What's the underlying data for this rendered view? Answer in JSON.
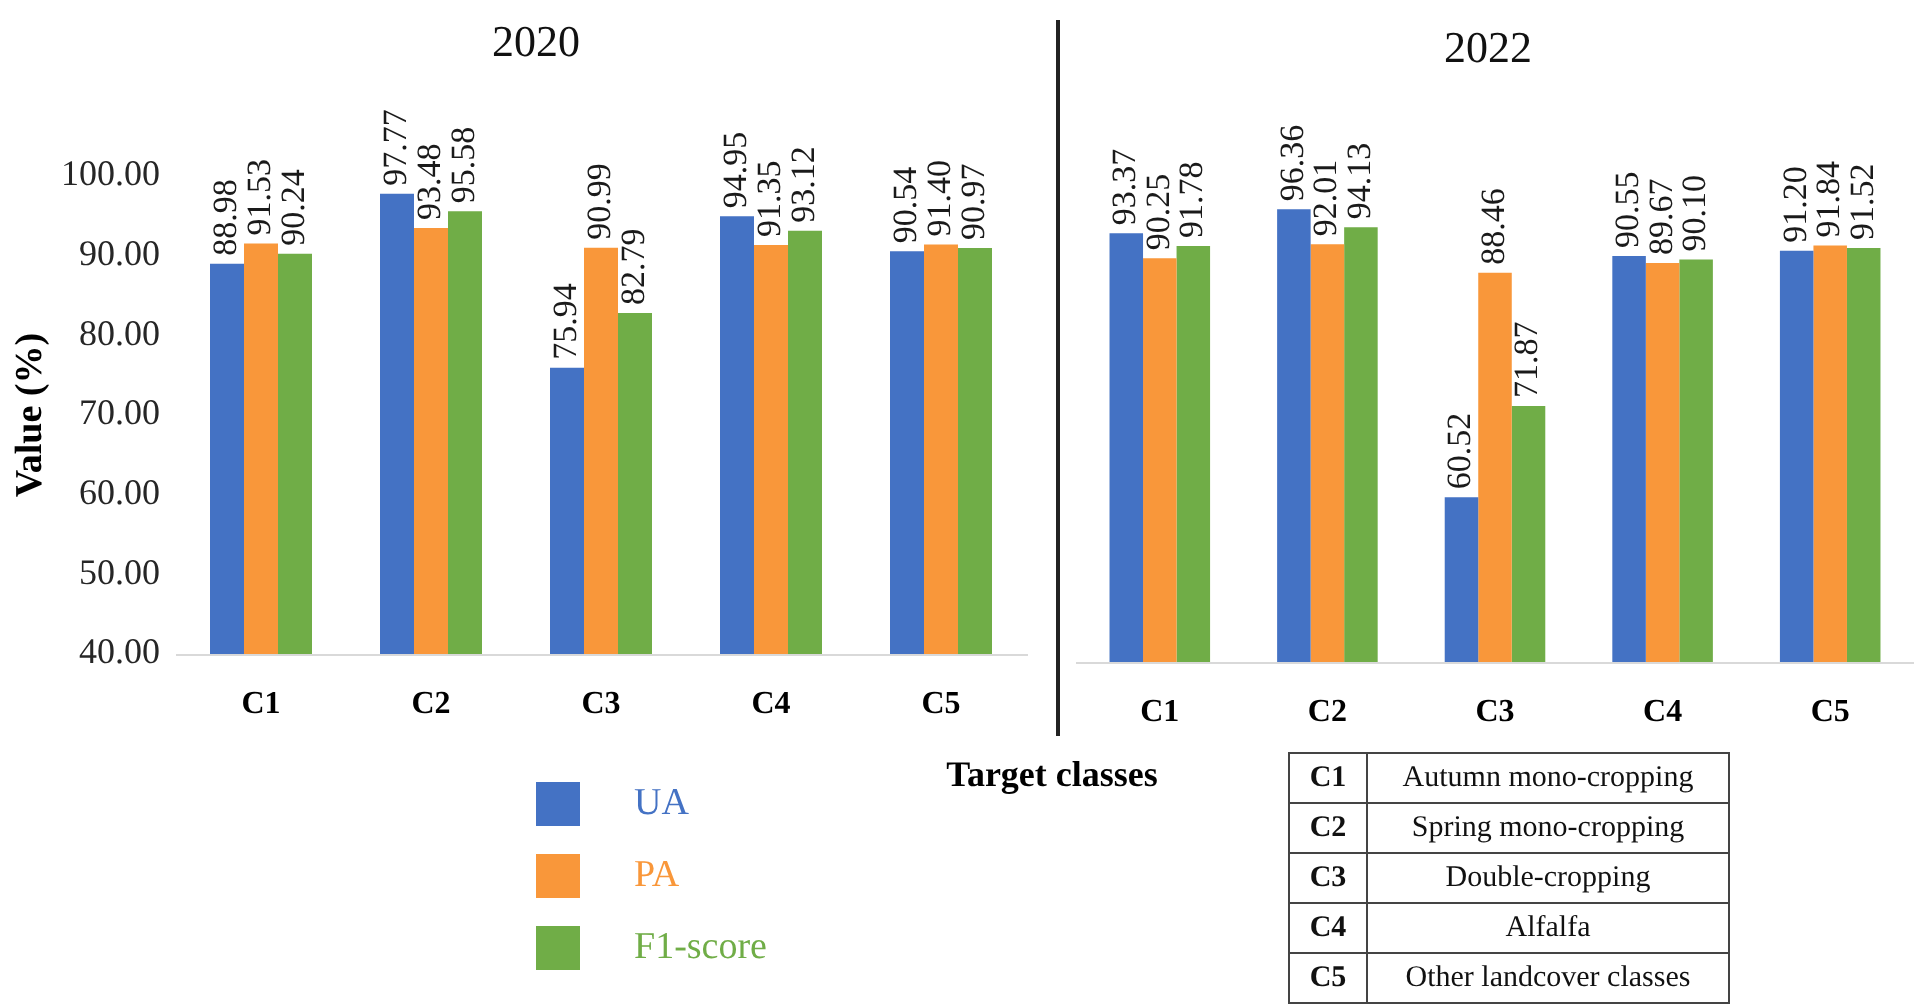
{
  "chart_data": [
    {
      "type": "bar",
      "title": "2020",
      "xlabel": "Target classes",
      "ylabel": "Value (%)",
      "categories": [
        "C1",
        "C2",
        "C3",
        "C4",
        "C5"
      ],
      "series": [
        {
          "name": "UA",
          "color": "#4472c4",
          "values": [
            88.98,
            97.77,
            75.94,
            94.95,
            90.54
          ],
          "value_labels": [
            "88.98",
            "97.77",
            "75.94",
            "94.95",
            "90.54"
          ]
        },
        {
          "name": "PA",
          "color": "#f9973a",
          "values": [
            91.53,
            93.48,
            90.99,
            91.35,
            91.4
          ],
          "value_labels": [
            "91.53",
            "93.48",
            "90.99",
            "91.35",
            "91.40"
          ]
        },
        {
          "name": "F1-score",
          "color": "#70ad47",
          "values": [
            90.24,
            95.58,
            82.79,
            93.12,
            90.97
          ],
          "value_labels": [
            "90.24",
            "95.58",
            "82.79",
            "93.12",
            "90.97"
          ]
        }
      ],
      "ylim": [
        40,
        100
      ],
      "yticks": [
        {
          "value": 40,
          "label": "40.00"
        },
        {
          "value": 50,
          "label": "50.00"
        },
        {
          "value": 60,
          "label": "60.00"
        },
        {
          "value": 70,
          "label": "70.00"
        },
        {
          "value": 80,
          "label": "80.00"
        },
        {
          "value": 90,
          "label": "90.00"
        },
        {
          "value": 100,
          "label": "100.00"
        }
      ],
      "grid": false,
      "legend": "bottom"
    },
    {
      "type": "bar",
      "title": "2022",
      "categories": [
        "C1",
        "C2",
        "C3",
        "C4",
        "C5"
      ],
      "series": [
        {
          "name": "UA",
          "color": "#4472c4",
          "values": [
            93.37,
            96.36,
            60.52,
            90.55,
            91.2
          ],
          "value_labels": [
            "93.37",
            "96.36",
            "60.52",
            "90.55",
            "91.20"
          ]
        },
        {
          "name": "PA",
          "color": "#f9973a",
          "values": [
            90.25,
            92.01,
            88.46,
            89.67,
            91.84
          ],
          "value_labels": [
            "90.25",
            "92.01",
            "88.46",
            "89.67",
            "91.84"
          ]
        },
        {
          "name": "F1-score",
          "color": "#70ad47",
          "values": [
            91.78,
            94.13,
            71.87,
            90.1,
            91.52
          ],
          "value_labels": [
            "91.78",
            "94.13",
            "71.87",
            "90.10",
            "91.52"
          ]
        }
      ],
      "ylim": [
        40,
        100
      ],
      "tick_labels": "x",
      "grid": false
    },
    {
      "type": "other",
      "annotations": [
        "C1",
        "Autumn mono-cropping",
        "C2",
        "Spring mono-cropping",
        "C3",
        "Double-cropping",
        "C4",
        "Alfalfa",
        "C5",
        "Other landcover classes"
      ]
    }
  ]
}
